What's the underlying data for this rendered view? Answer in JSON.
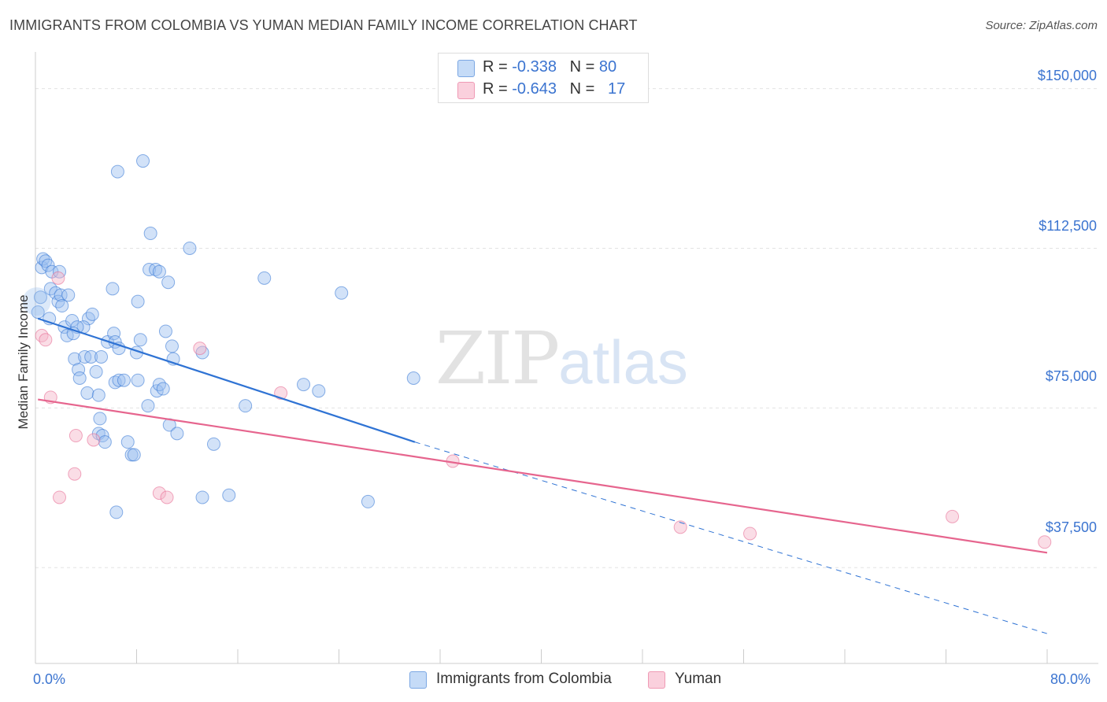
{
  "chart_data": {
    "type": "scatter",
    "title": "IMMIGRANTS FROM COLOMBIA VS YUMAN MEDIAN FAMILY INCOME CORRELATION CHART",
    "source": "Source: ZipAtlas.com",
    "xlabel": "",
    "ylabel": "Median Family Income",
    "xlim": [
      0,
      80
    ],
    "ylim": [
      15000,
      157500
    ],
    "x_tick_labels": {
      "min": "0.0%",
      "max": "80.0%"
    },
    "y_ticks": [
      {
        "value": 37500,
        "label": "$37,500"
      },
      {
        "value": 75000,
        "label": "$75,000"
      },
      {
        "value": 112500,
        "label": "$112,500"
      },
      {
        "value": 150000,
        "label": "$150,000"
      }
    ],
    "watermark": {
      "zip": "ZIP",
      "atlas": "atlas"
    },
    "legend": [
      {
        "prefix": "R = ",
        "r": "-0.338",
        "n_prefix": "N = ",
        "n": "80"
      },
      {
        "prefix": "R = ",
        "r": "-0.643",
        "n_prefix": "N = ",
        "n": "17"
      }
    ],
    "series": [
      {
        "name": "Immigrants from Colombia",
        "color": "#9bbfef",
        "line_color": "#2f73d4",
        "trend": {
          "x0": 0.2,
          "y0": 96000,
          "x1": 30,
          "y1": 67000,
          "dash_x1": 80,
          "dash_y1": 22000
        },
        "points": [
          [
            0.5,
            108000
          ],
          [
            0.6,
            110000
          ],
          [
            0.8,
            109500
          ],
          [
            1.0,
            108500
          ],
          [
            1.3,
            107000
          ],
          [
            1.2,
            103000
          ],
          [
            1.6,
            102000
          ],
          [
            1.8,
            100000
          ],
          [
            2.0,
            101500
          ],
          [
            2.6,
            101500
          ],
          [
            1.9,
            107000
          ],
          [
            1.1,
            96000
          ],
          [
            2.3,
            94000
          ],
          [
            2.5,
            92000
          ],
          [
            2.9,
            95500
          ],
          [
            4.2,
            96000
          ],
          [
            4.5,
            97000
          ],
          [
            3.8,
            94000
          ],
          [
            3.3,
            94000
          ],
          [
            3.1,
            86500
          ],
          [
            3.4,
            84000
          ],
          [
            3.5,
            82000
          ],
          [
            3.9,
            87000
          ],
          [
            4.4,
            87000
          ],
          [
            5.2,
            87000
          ],
          [
            4.8,
            83500
          ],
          [
            4.1,
            78500
          ],
          [
            5.0,
            78000
          ],
          [
            5.1,
            72500
          ],
          [
            5.0,
            69000
          ],
          [
            5.3,
            68500
          ],
          [
            5.5,
            67000
          ],
          [
            5.7,
            90500
          ],
          [
            6.1,
            103000
          ],
          [
            6.2,
            92500
          ],
          [
            6.3,
            90500
          ],
          [
            6.6,
            89000
          ],
          [
            6.3,
            81000
          ],
          [
            6.6,
            81500
          ],
          [
            7.0,
            81500
          ],
          [
            7.3,
            67000
          ],
          [
            7.6,
            64000
          ],
          [
            7.8,
            64000
          ],
          [
            8.0,
            88000
          ],
          [
            8.1,
            81500
          ],
          [
            8.1,
            100000
          ],
          [
            8.3,
            91000
          ],
          [
            8.5,
            133000
          ],
          [
            9.0,
            107500
          ],
          [
            8.9,
            75500
          ],
          [
            9.1,
            116000
          ],
          [
            9.5,
            107500
          ],
          [
            9.8,
            107000
          ],
          [
            9.6,
            79000
          ],
          [
            9.8,
            80500
          ],
          [
            10.1,
            79500
          ],
          [
            10.3,
            93000
          ],
          [
            10.5,
            104500
          ],
          [
            10.6,
            71000
          ],
          [
            10.8,
            89500
          ],
          [
            10.9,
            86500
          ],
          [
            11.2,
            69000
          ],
          [
            12.2,
            112500
          ],
          [
            13.2,
            88000
          ],
          [
            14.1,
            66500
          ],
          [
            13.2,
            54000
          ],
          [
            15.3,
            54500
          ],
          [
            16.6,
            75500
          ],
          [
            18.1,
            105500
          ],
          [
            21.2,
            80500
          ],
          [
            22.4,
            79000
          ],
          [
            24.2,
            102000
          ],
          [
            26.3,
            53000
          ],
          [
            29.9,
            82000
          ],
          [
            6.5,
            130500
          ],
          [
            6.4,
            50500
          ],
          [
            0.2,
            97500
          ],
          [
            0.4,
            101000
          ],
          [
            2.1,
            99000
          ],
          [
            3.0,
            92500
          ]
        ]
      },
      {
        "name": "Yuman",
        "color": "#f4b4c8",
        "line_color": "#e6658e",
        "trend": {
          "x0": 0.2,
          "y0": 77000,
          "x1": 80,
          "y1": 41000
        },
        "points": [
          [
            0.5,
            92000
          ],
          [
            0.8,
            91000
          ],
          [
            1.2,
            77500
          ],
          [
            1.8,
            105500
          ],
          [
            1.9,
            54000
          ],
          [
            3.1,
            59500
          ],
          [
            3.2,
            68500
          ],
          [
            4.6,
            67500
          ],
          [
            9.8,
            55000
          ],
          [
            10.4,
            54000
          ],
          [
            13.0,
            89000
          ],
          [
            19.4,
            78500
          ],
          [
            33.0,
            62500
          ],
          [
            51.0,
            47000
          ],
          [
            56.5,
            45500
          ],
          [
            72.5,
            49500
          ],
          [
            79.8,
            43500
          ]
        ]
      }
    ]
  },
  "bottom_legend": [
    "Immigrants from Colombia",
    "Yuman"
  ]
}
